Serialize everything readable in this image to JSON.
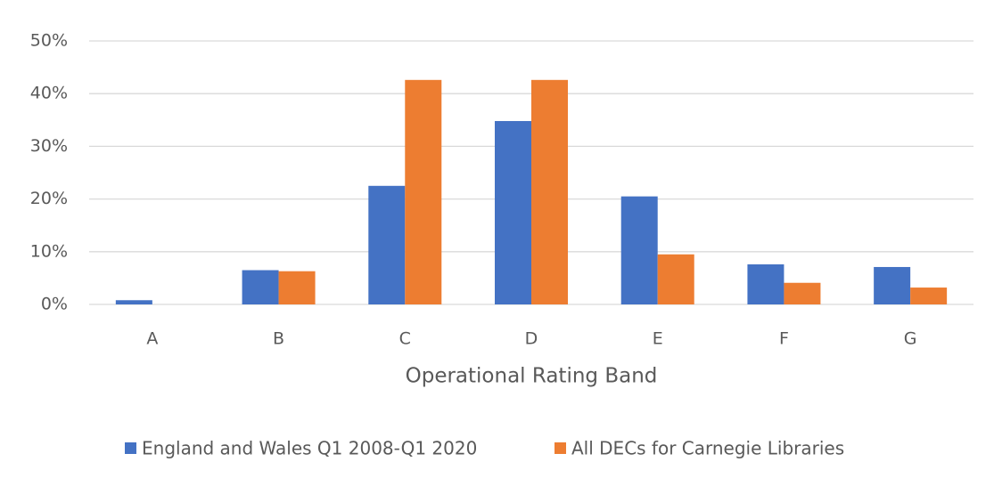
{
  "chart_data": {
    "type": "bar",
    "x_label": "Operational Rating Band",
    "categories": [
      "A",
      "B",
      "C",
      "D",
      "E",
      "F",
      "G"
    ],
    "series": [
      {
        "name": "England and Wales Q1 2008-Q1 2020",
        "color": "#4472c4",
        "values": [
          0.8,
          6.5,
          22.5,
          34.8,
          20.5,
          7.6,
          7.1
        ]
      },
      {
        "name": "All DECs for Carnegie Libraries",
        "color": "#ed7d31",
        "values": [
          0,
          6.3,
          42.6,
          42.6,
          9.5,
          4.1,
          3.2
        ]
      }
    ],
    "ylim": [
      0,
      50
    ],
    "yticks": [
      {
        "value": 0,
        "label": "0%"
      },
      {
        "value": 10,
        "label": "10%"
      },
      {
        "value": 20,
        "label": "20%"
      },
      {
        "value": 30,
        "label": "30%"
      },
      {
        "value": 40,
        "label": "40%"
      },
      {
        "value": 50,
        "label": "50%"
      }
    ],
    "grid": true,
    "legend": "bottom"
  }
}
